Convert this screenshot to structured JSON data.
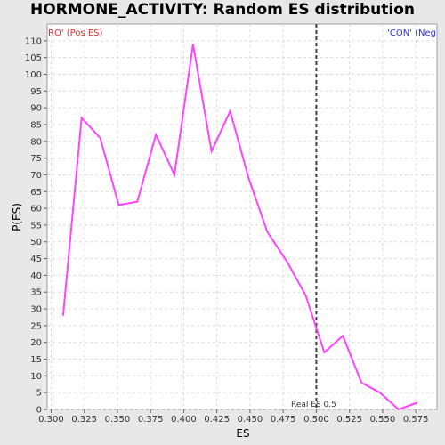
{
  "chart_data": {
    "type": "line",
    "title": "HORMONE_ACTIVITY: Random ES distribution",
    "xlabel": "ES",
    "ylabel": "P(ES)",
    "xlim": [
      0.297,
      0.591
    ],
    "ylim": [
      0,
      115
    ],
    "xticks": [
      "0.300",
      "0.325",
      "0.350",
      "0.375",
      "0.400",
      "0.425",
      "0.450",
      "0.475",
      "0.500",
      "0.525",
      "0.550",
      "0.575"
    ],
    "yticks": [
      "0",
      "5",
      "10",
      "15",
      "20",
      "25",
      "30",
      "35",
      "40",
      "45",
      "50",
      "55",
      "60",
      "65",
      "70",
      "75",
      "80",
      "85",
      "90",
      "95",
      "100",
      "105",
      "110"
    ],
    "grid": true,
    "series": [
      {
        "color": "#ff44ff",
        "x": [
          0.309,
          0.323,
          0.337,
          0.351,
          0.365,
          0.379,
          0.393,
          0.407,
          0.421,
          0.435,
          0.449,
          0.463,
          0.478,
          0.492,
          0.506,
          0.52,
          0.534,
          0.548,
          0.562,
          0.576
        ],
        "y": [
          28,
          87,
          81,
          61,
          62,
          82,
          70,
          109,
          77,
          89,
          69,
          53,
          44,
          34,
          17,
          22,
          8,
          5,
          0,
          2
        ]
      }
    ],
    "marker": {
      "x": 0.5,
      "label": "Real ES 0.5",
      "color": "#404040"
    },
    "left_corner_label": "RO' (Pos ES)",
    "left_corner_color": "#dd3333",
    "right_corner_label": "'CON' (Neg",
    "right_corner_color": "#3333dd"
  }
}
